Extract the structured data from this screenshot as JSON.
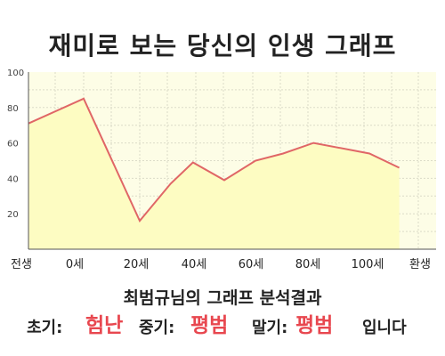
{
  "chart_data": {
    "type": "area",
    "title": "재미로 보는 당신의 인생 그래프",
    "categories": [
      "전생",
      "0세",
      "20세",
      "40세",
      "60세",
      "80세",
      "100세",
      "환생"
    ],
    "points": [
      {
        "x": -10,
        "y": 71
      },
      {
        "x": 0,
        "y": 85
      },
      {
        "x": 20,
        "y": 16
      },
      {
        "x": 31,
        "y": 37
      },
      {
        "x": 39,
        "y": 49
      },
      {
        "x": 50,
        "y": 39
      },
      {
        "x": 61,
        "y": 50
      },
      {
        "x": 71,
        "y": 54
      },
      {
        "x": 82,
        "y": 60
      },
      {
        "x": 102,
        "y": 54
      },
      {
        "x": 113,
        "y": 46
      }
    ],
    "y_ticks": [
      20,
      40,
      60,
      80,
      100
    ],
    "ylim": [
      0,
      100
    ],
    "grid": true,
    "line_color": "#e06666",
    "fill_color": "#fdfcc2",
    "bg_color": "#fdfde6"
  },
  "result": {
    "heading": "최범규님의 그래프 분석결과",
    "early_label": "초기:",
    "early_value": "험난",
    "middle_label": "중기:",
    "middle_value": "평범",
    "late_label": "말기:",
    "late_value": "평범",
    "suffix": "입니다"
  }
}
